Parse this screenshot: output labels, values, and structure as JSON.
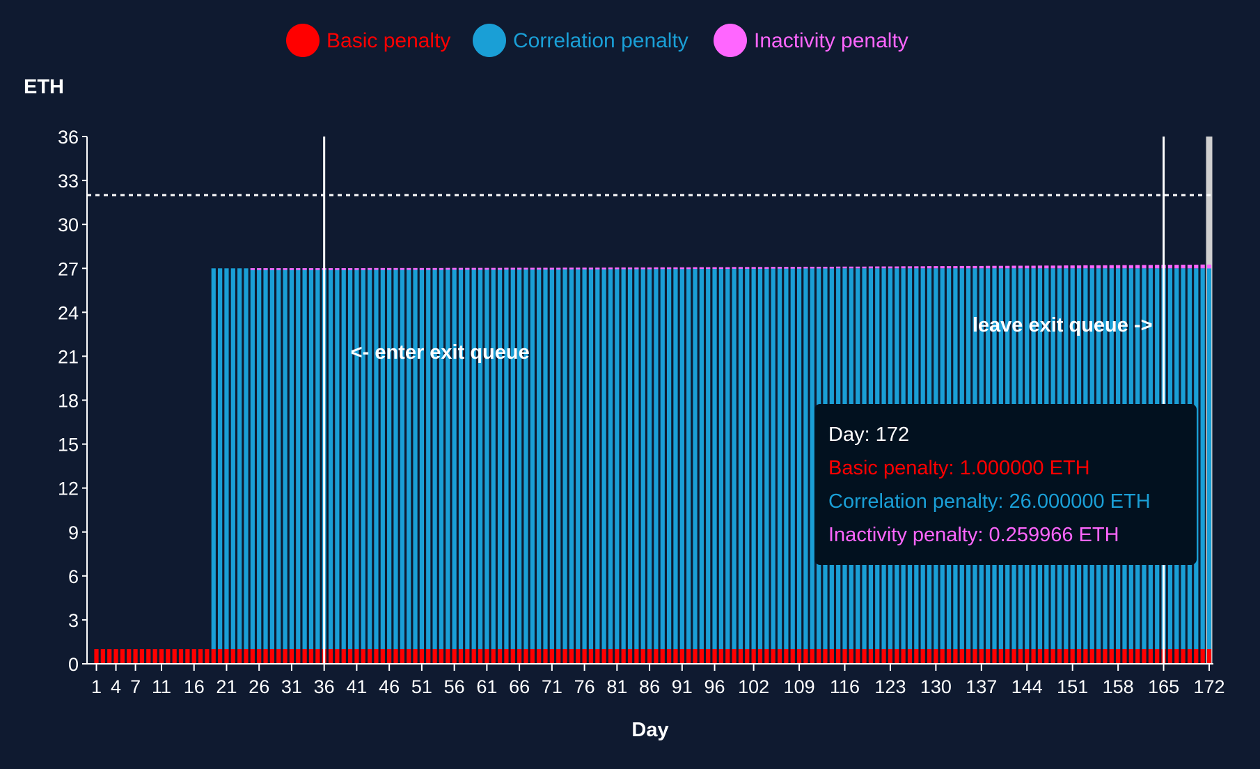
{
  "chart_data": {
    "type": "bar",
    "stacked": true,
    "ylabel": "ETH",
    "xlabel": "Day",
    "ylim": [
      0,
      36
    ],
    "yticks": [
      0,
      3,
      6,
      9,
      12,
      15,
      18,
      21,
      24,
      27,
      30,
      33,
      36
    ],
    "xtick_labels": [
      1,
      4,
      7,
      11,
      16,
      21,
      26,
      31,
      36,
      41,
      46,
      51,
      56,
      61,
      66,
      71,
      76,
      81,
      86,
      91,
      96,
      102,
      109,
      116,
      123,
      130,
      137,
      144,
      151,
      158,
      165,
      172
    ],
    "x_start": 1,
    "x_end": 172,
    "reference_line": 32,
    "vertical_markers": [
      {
        "day": 36,
        "label": "<- enter exit queue"
      },
      {
        "day": 165,
        "label": "leave exit queue ->"
      }
    ],
    "legend_position": "top-center",
    "series": [
      {
        "name": "Basic penalty",
        "color": "#ff0000",
        "values": [
          1,
          1,
          1,
          1,
          1,
          1,
          1,
          1,
          1,
          1,
          1,
          1,
          1,
          1,
          1,
          1,
          1,
          1,
          1,
          1,
          1,
          1,
          1,
          1,
          1,
          1,
          1,
          1,
          1,
          1,
          1,
          1,
          1,
          1,
          1,
          1,
          1,
          1,
          1,
          1,
          1,
          1,
          1,
          1,
          1,
          1,
          1,
          1,
          1,
          1,
          1,
          1,
          1,
          1,
          1,
          1,
          1,
          1,
          1,
          1,
          1,
          1,
          1,
          1,
          1,
          1,
          1,
          1,
          1,
          1,
          1,
          1,
          1,
          1,
          1,
          1,
          1,
          1,
          1,
          1,
          1,
          1,
          1,
          1,
          1,
          1,
          1,
          1,
          1,
          1,
          1,
          1,
          1,
          1,
          1,
          1,
          1,
          1,
          1,
          1,
          1,
          1,
          1,
          1,
          1,
          1,
          1,
          1,
          1,
          1,
          1,
          1,
          1,
          1,
          1,
          1,
          1,
          1,
          1,
          1,
          1,
          1,
          1,
          1,
          1,
          1,
          1,
          1,
          1,
          1,
          1,
          1,
          1,
          1,
          1,
          1,
          1,
          1,
          1,
          1,
          1,
          1,
          1,
          1,
          1,
          1,
          1,
          1,
          1,
          1,
          1,
          1,
          1,
          1,
          1,
          1,
          1,
          1,
          1,
          1,
          1,
          1,
          1,
          1,
          1,
          1,
          1,
          1,
          1,
          1,
          1,
          1
        ]
      },
      {
        "name": "Correlation penalty",
        "color": "#1a9fd6",
        "values": [
          0,
          0,
          0,
          0,
          0,
          0,
          0,
          0,
          0,
          0,
          0,
          0,
          0,
          0,
          0,
          0,
          0,
          0,
          26,
          26,
          26,
          26,
          26,
          26,
          26,
          26,
          26,
          26,
          26,
          26,
          26,
          26,
          26,
          26,
          26,
          26,
          26,
          26,
          26,
          26,
          26,
          26,
          26,
          26,
          26,
          26,
          26,
          26,
          26,
          26,
          26,
          26,
          26,
          26,
          26,
          26,
          26,
          26,
          26,
          26,
          26,
          26,
          26,
          26,
          26,
          26,
          26,
          26,
          26,
          26,
          26,
          26,
          26,
          26,
          26,
          26,
          26,
          26,
          26,
          26,
          26,
          26,
          26,
          26,
          26,
          26,
          26,
          26,
          26,
          26,
          26,
          26,
          26,
          26,
          26,
          26,
          26,
          26,
          26,
          26,
          26,
          26,
          26,
          26,
          26,
          26,
          26,
          26,
          26,
          26,
          26,
          26,
          26,
          26,
          26,
          26,
          26,
          26,
          26,
          26,
          26,
          26,
          26,
          26,
          26,
          26,
          26,
          26,
          26,
          26,
          26,
          26,
          26,
          26,
          26,
          26,
          26,
          26,
          26,
          26,
          26,
          26,
          26,
          26,
          26,
          26,
          26,
          26,
          26,
          26,
          26,
          26,
          26,
          26,
          26,
          26,
          26,
          26,
          26,
          26,
          26,
          26,
          26,
          26,
          26,
          26,
          26,
          26,
          26,
          26,
          26,
          26
        ]
      },
      {
        "name": "Inactivity penalty",
        "color": "#ff66ff",
        "values": [
          0,
          0,
          0,
          0,
          0,
          0,
          0,
          0,
          0,
          0,
          0,
          0,
          0,
          0,
          0,
          0,
          0,
          0,
          0,
          0,
          0,
          0,
          0,
          0,
          0.01,
          0.01,
          0.01,
          0.01,
          0.01,
          0.01,
          0.01,
          0.01,
          0.01,
          0.01,
          0.01,
          0.01,
          0.01,
          0.01,
          0.01,
          0.01,
          0.01,
          0.01,
          0.02,
          0.02,
          0.02,
          0.02,
          0.02,
          0.02,
          0.02,
          0.02,
          0.02,
          0.02,
          0.02,
          0.02,
          0.03,
          0.03,
          0.03,
          0.03,
          0.03,
          0.03,
          0.03,
          0.03,
          0.03,
          0.04,
          0.04,
          0.04,
          0.04,
          0.04,
          0.04,
          0.04,
          0.04,
          0.04,
          0.05,
          0.05,
          0.05,
          0.05,
          0.05,
          0.05,
          0.05,
          0.06,
          0.06,
          0.06,
          0.06,
          0.06,
          0.06,
          0.06,
          0.07,
          0.07,
          0.07,
          0.07,
          0.07,
          0.07,
          0.08,
          0.08,
          0.08,
          0.08,
          0.08,
          0.08,
          0.09,
          0.09,
          0.09,
          0.09,
          0.09,
          0.09,
          0.1,
          0.1,
          0.1,
          0.1,
          0.1,
          0.11,
          0.11,
          0.11,
          0.11,
          0.11,
          0.12,
          0.12,
          0.12,
          0.12,
          0.12,
          0.13,
          0.13,
          0.13,
          0.13,
          0.13,
          0.14,
          0.14,
          0.14,
          0.14,
          0.15,
          0.15,
          0.15,
          0.15,
          0.15,
          0.16,
          0.16,
          0.16,
          0.16,
          0.17,
          0.17,
          0.17,
          0.17,
          0.18,
          0.18,
          0.18,
          0.18,
          0.19,
          0.19,
          0.19,
          0.19,
          0.2,
          0.2,
          0.2,
          0.21,
          0.21,
          0.21,
          0.21,
          0.22,
          0.22,
          0.22,
          0.22,
          0.23,
          0.23,
          0.23,
          0.24,
          0.24,
          0.24,
          0.24,
          0.25,
          0.25,
          0.25,
          0.26,
          0.259966
        ]
      }
    ],
    "hovered_day": 172
  },
  "tooltip": {
    "day": "Day: 172",
    "basic": "Basic penalty: 1.000000 ETH",
    "correlation": "Correlation penalty: 26.000000 ETH",
    "inactivity": "Inactivity penalty: 0.259966 ETH"
  },
  "colors": {
    "background": "#0f1a30",
    "tooltip_bg": "#02111f",
    "highlight": "#d0d0d0"
  }
}
